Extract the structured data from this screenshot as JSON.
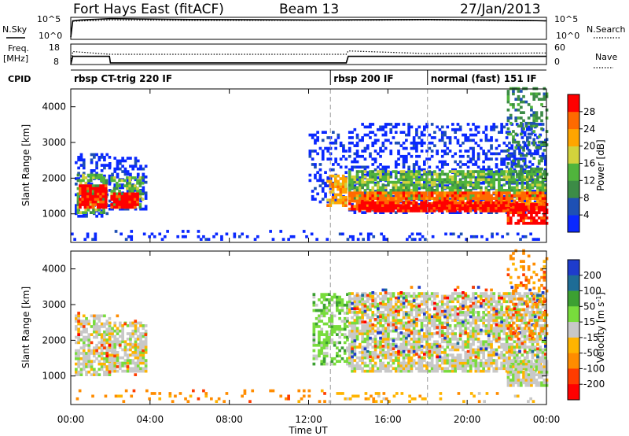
{
  "header": {
    "station": "Fort Hays East (fitACF)",
    "beam": "Beam 13",
    "date": "27/Jan/2013"
  },
  "left_labels": {
    "nsky": "N.Sky",
    "freq": "Freq.",
    "freq_unit": "[MHz]",
    "cpid": "CPID"
  },
  "right_labels": {
    "nsearch": "N.Search",
    "nave": "Nave"
  },
  "colors": {
    "power": [
      "#0a28ff",
      "#1e50b4",
      "#3c8c46",
      "#50b43c",
      "#d2d23c",
      "#ffa500",
      "#ff6a00",
      "#ff0000"
    ],
    "velocity": [
      "#1e3ccc",
      "#1e6c96",
      "#3ca032",
      "#78dc3c",
      "#c8c8c8",
      "#ffb400",
      "#ff8c00",
      "#ff3c00",
      "#ff0000"
    ]
  },
  "chart_data": [
    {
      "type": "line",
      "name": "noise",
      "left_ticks": [
        "10^5",
        "10^0"
      ],
      "right_ticks": [
        "10^5",
        "10^0"
      ],
      "series": [
        {
          "name": "N.Sky",
          "style": "solid",
          "x": [
            0.0,
            0.1,
            0.5,
            1.0,
            2.0,
            6.0,
            12.0,
            18.0,
            23.0,
            24.0
          ],
          "y": [
            0.5,
            4.2,
            4.4,
            4.5,
            4.7,
            4.5,
            4.4,
            4.5,
            4.3,
            4.2
          ]
        },
        {
          "name": "N.Search",
          "style": "dotted",
          "x": [
            0.0,
            0.1,
            2.0,
            6.0,
            12.0,
            18.0,
            24.0
          ],
          "y": [
            0.5,
            4.1,
            4.4,
            4.3,
            4.3,
            4.4,
            4.2
          ]
        }
      ]
    },
    {
      "type": "line",
      "name": "frequency",
      "left_ticks": [
        "18",
        "8"
      ],
      "right_ticks": [
        "60",
        "0"
      ],
      "series": [
        {
          "name": "Freq.",
          "style": "solid",
          "x": [
            0.0,
            0.1,
            1.95,
            2.0,
            13.9,
            14.0,
            24.0
          ],
          "y": [
            8.0,
            12.0,
            12.0,
            8.8,
            8.8,
            12.0,
            12.0
          ]
        },
        {
          "name": "Nave",
          "style": "dotted",
          "x": [
            0.0,
            0.1,
            2.0,
            13.9,
            14.0,
            18.0,
            24.0
          ],
          "y": [
            0,
            38,
            30,
            30,
            40,
            32,
            34
          ]
        }
      ]
    },
    {
      "type": "table",
      "name": "cpid",
      "segments": [
        {
          "label": "rbsp CT-trig 220 IF",
          "start": 0.0
        },
        {
          "label": "rbsp 200 IF",
          "start": 13.1
        },
        {
          "label": "normal (fast) 151 IF",
          "start": 18.0
        }
      ]
    },
    {
      "type": "heatmap",
      "name": "power",
      "ylabel": "Slant Range [km]",
      "ylim": [
        200,
        4500
      ],
      "xlim": [
        0,
        24
      ],
      "yticks": [
        1000,
        2000,
        3000,
        4000
      ],
      "colorbar": {
        "label": "Power [dB]",
        "ticks": [
          4,
          8,
          12,
          16,
          20,
          24,
          28
        ]
      },
      "dashed_lines_x": [
        13.1,
        18.0
      ],
      "patches": [
        {
          "x0": 0.2,
          "x1": 1.9,
          "y0": 900,
          "y1": 2700,
          "level": 0,
          "density": 0.35
        },
        {
          "x0": 0.3,
          "x1": 1.8,
          "y0": 1000,
          "y1": 2100,
          "level": 3,
          "density": 0.6
        },
        {
          "x0": 0.4,
          "x1": 1.7,
          "y0": 1150,
          "y1": 1800,
          "level": 7,
          "density": 0.85
        },
        {
          "x0": 1.9,
          "x1": 3.8,
          "y0": 1100,
          "y1": 2600,
          "level": 0,
          "density": 0.35
        },
        {
          "x0": 2.0,
          "x1": 3.6,
          "y0": 1150,
          "y1": 2000,
          "level": 3,
          "density": 0.6
        },
        {
          "x0": 2.0,
          "x1": 3.4,
          "y0": 1150,
          "y1": 1600,
          "level": 7,
          "density": 0.85
        },
        {
          "x0": 0.0,
          "x1": 13.0,
          "y0": 250,
          "y1": 550,
          "level": 0,
          "density": 0.15
        },
        {
          "x0": 12.0,
          "x1": 13.9,
          "y0": 1300,
          "y1": 3300,
          "level": 0,
          "density": 0.3
        },
        {
          "x0": 12.9,
          "x1": 13.9,
          "y0": 1200,
          "y1": 2100,
          "level": 5,
          "density": 0.7
        },
        {
          "x0": 14.0,
          "x1": 24.0,
          "y0": 1000,
          "y1": 3500,
          "level": 0,
          "density": 0.35
        },
        {
          "x0": 14.0,
          "x1": 24.0,
          "y0": 1400,
          "y1": 2200,
          "level": 3,
          "density": 0.75
        },
        {
          "x0": 14.0,
          "x1": 24.0,
          "y0": 1100,
          "y1": 1600,
          "level": 6,
          "density": 0.85
        },
        {
          "x0": 14.5,
          "x1": 22.5,
          "y0": 1050,
          "y1": 1350,
          "level": 7,
          "density": 0.9
        },
        {
          "x0": 22.0,
          "x1": 24.0,
          "y0": 700,
          "y1": 1300,
          "level": 7,
          "density": 0.8
        },
        {
          "x0": 22.0,
          "x1": 24.0,
          "y0": 2000,
          "y1": 4500,
          "level": 2,
          "density": 0.3
        },
        {
          "x0": 13.0,
          "x1": 24.0,
          "y0": 250,
          "y1": 450,
          "level": 0,
          "density": 0.2
        }
      ]
    },
    {
      "type": "heatmap",
      "name": "velocity",
      "ylabel": "Slant Range [km]",
      "ylim": [
        200,
        4500
      ],
      "xlim": [
        0,
        24
      ],
      "yticks": [
        1000,
        2000,
        3000,
        4000
      ],
      "xlabel": "Time UT",
      "xticks": [
        "00:00",
        "04:00",
        "08:00",
        "12:00",
        "16:00",
        "20:00",
        "00:00"
      ],
      "colorbar": {
        "label": "Velocity [m s^-1]",
        "ticks": [
          200,
          100,
          50,
          15,
          -15,
          -50,
          -100,
          -200
        ]
      },
      "dashed_lines_x": [
        13.1,
        18.0
      ],
      "patches": [
        {
          "x0": 0.2,
          "x1": 1.9,
          "y0": 1000,
          "y1": 2700,
          "level": 4,
          "density": 0.7
        },
        {
          "x0": 1.9,
          "x1": 3.8,
          "y0": 1100,
          "y1": 2500,
          "level": 4,
          "density": 0.7
        },
        {
          "x0": 0.2,
          "x1": 3.8,
          "y0": 1000,
          "y1": 2800,
          "level": 7,
          "density": 0.04
        },
        {
          "x0": 0.0,
          "x1": 13.0,
          "y0": 250,
          "y1": 600,
          "level": 6,
          "density": 0.12
        },
        {
          "x0": 12.2,
          "x1": 13.9,
          "y0": 1300,
          "y1": 3300,
          "level": 3,
          "density": 0.5
        },
        {
          "x0": 14.0,
          "x1": 24.0,
          "y0": 1100,
          "y1": 3300,
          "level": 4,
          "density": 0.75
        },
        {
          "x0": 14.0,
          "x1": 24.0,
          "y0": 1500,
          "y1": 3500,
          "level": 0,
          "density": 0.05
        },
        {
          "x0": 14.0,
          "x1": 24.0,
          "y0": 1500,
          "y1": 3500,
          "level": 7,
          "density": 0.05
        },
        {
          "x0": 22.0,
          "x1": 24.0,
          "y0": 700,
          "y1": 1400,
          "level": 4,
          "density": 0.8
        },
        {
          "x0": 22.0,
          "x1": 24.0,
          "y0": 2000,
          "y1": 4500,
          "level": 6,
          "density": 0.2
        },
        {
          "x0": 13.0,
          "x1": 24.0,
          "y0": 250,
          "y1": 500,
          "level": 5,
          "density": 0.15
        }
      ]
    }
  ]
}
